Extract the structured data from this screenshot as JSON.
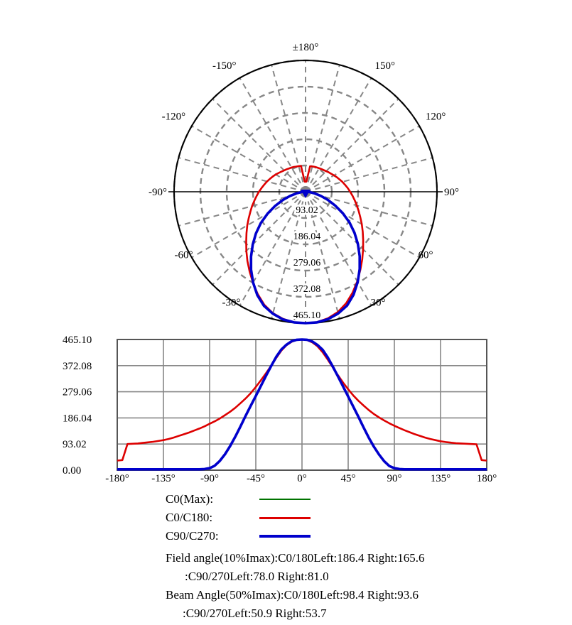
{
  "legend": [
    {
      "label": "C0(Max):",
      "color": "#007300"
    },
    {
      "label": "C0/C180:",
      "color": "#dd0000"
    },
    {
      "label": "C90/C270:",
      "color": "#0000cc"
    }
  ],
  "annotations": {
    "field_angle_line1": "Field angle(10%Imax):C0/180Left:186.4 Right:165.6",
    "field_angle_line2": ":C90/270Left:78.0 Right:81.0",
    "beam_angle_line1": "Beam Angle(50%Imax):C0/180Left:98.4 Right:93.6",
    "beam_angle_line2": ":C90/270Left:50.9 Right:53.7"
  },
  "theme": {
    "background": "#ffffff",
    "grid_color": "#878787",
    "axis_color": "#000000",
    "border_color": "#555555"
  },
  "chart_data": [
    {
      "type": "polar",
      "title": "",
      "max_value": 465.1,
      "zero_direction": "down",
      "spoke_step_deg": 15,
      "ring_values": [
        93.02,
        186.04,
        279.06,
        372.08,
        465.1
      ],
      "ring_labels": [
        "93.02",
        "186.04",
        "279.06",
        "372.08",
        "465.10"
      ],
      "angle_ticks": [
        {
          "deg": 180,
          "label": "±180°"
        },
        {
          "deg": -150,
          "label": "-150°"
        },
        {
          "deg": 150,
          "label": "150°"
        },
        {
          "deg": -120,
          "label": "-120°"
        },
        {
          "deg": 120,
          "label": "120°"
        },
        {
          "deg": -90,
          "label": "-90°"
        },
        {
          "deg": 90,
          "label": "90°"
        },
        {
          "deg": -60,
          "label": "-60°"
        },
        {
          "deg": 60,
          "label": "60°"
        },
        {
          "deg": -30,
          "label": "-30°"
        },
        {
          "deg": 30,
          "label": "30°"
        },
        {
          "deg": 0,
          "label": "0°"
        }
      ],
      "series": [
        {
          "name": "C0(Max)",
          "color": "#007300",
          "stroke_width": 2,
          "angles_deg": [
            0
          ],
          "values": [
            465.1
          ]
        },
        {
          "name": "C0/C180",
          "color": "#dd0000",
          "stroke_width": 2.6,
          "angles_deg": [
            -180,
            -175,
            -170,
            -165,
            -160,
            -155,
            -150,
            -145,
            -140,
            -135,
            -130,
            -125,
            -120,
            -115,
            -110,
            -105,
            -100,
            -95,
            -90,
            -85,
            -80,
            -75,
            -70,
            -65,
            -60,
            -55,
            -50,
            -45,
            -40,
            -35,
            -30,
            -25,
            -20,
            -15,
            -10,
            -5,
            0,
            5,
            10,
            15,
            20,
            25,
            30,
            35,
            40,
            45,
            50,
            55,
            60,
            65,
            70,
            75,
            80,
            85,
            90,
            95,
            100,
            105,
            110,
            115,
            120,
            125,
            130,
            135,
            140,
            145,
            150,
            155,
            160,
            165,
            170,
            175,
            180
          ],
          "values": [
            34,
            36,
            93,
            94,
            95,
            97,
            99,
            101,
            104,
            107,
            111,
            116,
            122,
            128,
            134,
            141,
            148,
            156,
            165,
            174,
            184,
            196,
            208,
            222,
            238,
            255,
            274,
            296,
            320,
            345,
            372,
            400,
            426,
            445,
            457,
            464,
            465.1,
            463,
            455,
            441,
            420,
            394,
            366,
            338,
            312,
            288,
            266,
            247,
            230,
            214,
            200,
            188,
            177,
            167,
            158,
            150,
            142,
            135,
            128,
            122,
            116,
            111,
            107,
            103,
            100,
            98,
            96,
            95,
            94,
            93,
            92,
            36,
            34
          ]
        },
        {
          "name": "C90/C270",
          "color": "#0000cc",
          "stroke_width": 3.6,
          "angles_deg": [
            -180,
            -175,
            -170,
            -165,
            -160,
            -155,
            -150,
            -145,
            -140,
            -135,
            -130,
            -125,
            -120,
            -115,
            -110,
            -105,
            -100,
            -95,
            -90,
            -85,
            -80,
            -75,
            -70,
            -65,
            -60,
            -55,
            -50,
            -45,
            -40,
            -35,
            -30,
            -25,
            -20,
            -15,
            -10,
            -5,
            0,
            5,
            10,
            15,
            20,
            25,
            30,
            35,
            40,
            45,
            50,
            55,
            60,
            65,
            70,
            75,
            80,
            85,
            90,
            95,
            100,
            105,
            110,
            115,
            120,
            125,
            130,
            135,
            140,
            145,
            150,
            155,
            160,
            165,
            170,
            175,
            180
          ],
          "values": [
            3,
            3,
            3,
            3,
            3,
            3,
            3,
            3,
            3,
            3,
            3,
            3,
            3,
            3,
            3,
            3,
            3,
            4,
            7,
            16,
            33,
            57,
            86,
            119,
            155,
            193,
            229,
            264,
            300,
            336,
            371,
            404,
            430,
            447,
            459,
            464,
            465.1,
            464,
            458,
            446,
            429,
            402,
            369,
            334,
            298,
            262,
            226,
            190,
            152,
            116,
            84,
            56,
            32,
            15,
            7,
            4,
            3,
            3,
            3,
            3,
            3,
            3,
            3,
            3,
            3,
            3,
            3,
            3,
            3,
            3,
            3,
            3,
            3
          ]
        }
      ]
    },
    {
      "type": "line",
      "title": "",
      "xlabel": "",
      "ylabel": "",
      "xlim": [
        -180,
        180
      ],
      "ylim": [
        0,
        465.1
      ],
      "grid": true,
      "x_ticks": [
        {
          "value": -180,
          "label": "-180°"
        },
        {
          "value": -135,
          "label": "-135°"
        },
        {
          "value": -90,
          "label": "-90°"
        },
        {
          "value": -45,
          "label": "-45°"
        },
        {
          "value": 0,
          "label": "0°"
        },
        {
          "value": 45,
          "label": "45°"
        },
        {
          "value": 90,
          "label": "90°"
        },
        {
          "value": 135,
          "label": "135°"
        },
        {
          "value": 180,
          "label": "180°"
        }
      ],
      "y_ticks": [
        {
          "value": 465.1,
          "label": "465.10"
        },
        {
          "value": 372.08,
          "label": "372.08"
        },
        {
          "value": 279.06,
          "label": "279.06"
        },
        {
          "value": 186.04,
          "label": "186.04"
        },
        {
          "value": 93.02,
          "label": "93.02"
        },
        {
          "value": 0,
          "label": "0.00"
        }
      ],
      "series_from_chart": 0
    }
  ]
}
